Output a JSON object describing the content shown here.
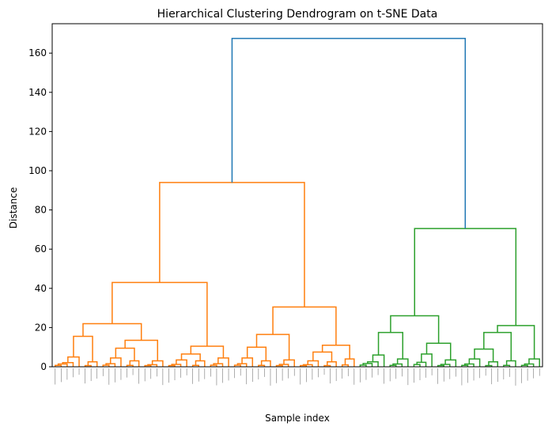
{
  "chart_data": {
    "type": "dendrogram",
    "title": "Hierarchical Clustering Dendrogram on t-SNE Data",
    "xlabel": "Sample index",
    "ylabel": "Distance",
    "ylim": [
      0,
      175
    ],
    "yticks": [
      0,
      20,
      40,
      60,
      80,
      100,
      120,
      140,
      160
    ],
    "grid": false,
    "colors": {
      "root_link": "#1f77b4",
      "cluster_orange": "#ff7f0e",
      "cluster_green": "#2ca02c",
      "axes": "#000000"
    },
    "top_merges": {
      "root": 167.5,
      "orange_cluster": 94,
      "green_cluster": 70.5,
      "orange_left": 43,
      "orange_right": 30.5,
      "green_left": 26,
      "green_right": 21
    },
    "tree": {
      "h": 167.5,
      "c": "#1f77b4",
      "k": [
        {
          "h": 94,
          "c": "#ff7f0e",
          "k": [
            {
              "h": 43,
              "k": [
                {
                  "h": 22,
                  "k": [
                    {
                      "h": 15.5,
                      "k": [
                        {
                          "h": 5,
                          "n": 5
                        },
                        {
                          "h": 2.5,
                          "n": 3
                        }
                      ]
                    },
                    {
                      "h": 13.5,
                      "k": [
                        {
                          "h": 9.5,
                          "k": [
                            {
                              "h": 4.5,
                              "n": 4
                            },
                            {
                              "h": 3,
                              "n": 3
                            }
                          ]
                        },
                        {
                          "h": 3,
                          "n": 4
                        }
                      ]
                    }
                  ]
                },
                {
                  "h": 10.5,
                  "k": [
                    {
                      "h": 6.5,
                      "k": [
                        {
                          "h": 3.5,
                          "n": 4
                        },
                        {
                          "h": 3,
                          "n": 3
                        }
                      ]
                    },
                    {
                      "h": 4.5,
                      "n": 4
                    }
                  ]
                }
              ]
            },
            {
              "h": 30.5,
              "k": [
                {
                  "h": 16.5,
                  "k": [
                    {
                      "h": 10,
                      "k": [
                        {
                          "h": 4.5,
                          "n": 4
                        },
                        {
                          "h": 3,
                          "n": 3
                        }
                      ]
                    },
                    {
                      "h": 3.5,
                      "n": 4
                    }
                  ]
                },
                {
                  "h": 11,
                  "k": [
                    {
                      "h": 7.5,
                      "k": [
                        {
                          "h": 3,
                          "n": 4
                        },
                        {
                          "h": 2.5,
                          "n": 3
                        }
                      ]
                    },
                    {
                      "h": 4,
                      "n": 3
                    }
                  ]
                }
              ]
            }
          ]
        },
        {
          "h": 70.5,
          "c": "#2ca02c",
          "k": [
            {
              "h": 26,
              "k": [
                {
                  "h": 17.5,
                  "k": [
                    {
                      "h": 6,
                      "n": 5
                    },
                    {
                      "h": 4,
                      "n": 4
                    }
                  ]
                },
                {
                  "h": 12,
                  "k": [
                    {
                      "h": 6.5,
                      "n": 4
                    },
                    {
                      "h": 3.5,
                      "n": 4
                    }
                  ]
                }
              ]
            },
            {
              "h": 21,
              "k": [
                {
                  "h": 17.5,
                  "k": [
                    {
                      "h": 9,
                      "k": [
                        {
                          "h": 4,
                          "n": 4
                        },
                        {
                          "h": 2.5,
                          "n": 3
                        }
                      ]
                    },
                    {
                      "h": 3,
                      "n": 3
                    }
                  ]
                },
                {
                  "h": 4,
                  "n": 4
                }
              ]
            }
          ]
        }
      ]
    }
  }
}
